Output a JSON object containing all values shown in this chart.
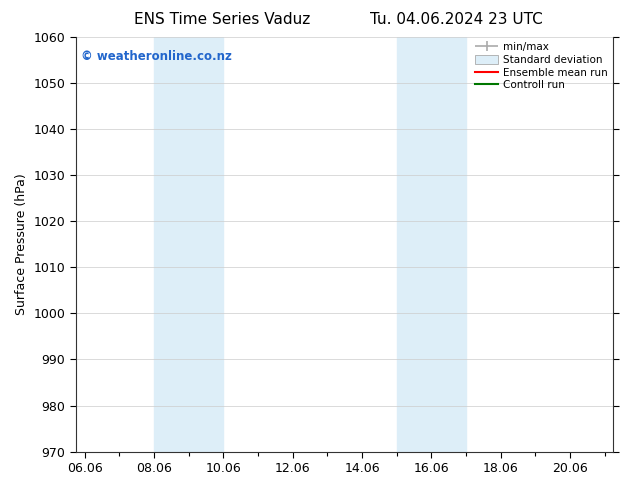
{
  "title_left": "ENS Time Series Vaduz",
  "title_right": "Tu. 04.06.2024 23 UTC",
  "ylabel": "Surface Pressure (hPa)",
  "xlabel": "",
  "ylim": [
    970,
    1060
  ],
  "yticks": [
    970,
    980,
    990,
    1000,
    1010,
    1020,
    1030,
    1040,
    1050,
    1060
  ],
  "xlim_start": 5.75,
  "xlim_end": 21.25,
  "xtick_labels": [
    "06.06",
    "08.06",
    "10.06",
    "12.06",
    "14.06",
    "16.06",
    "18.06",
    "20.06"
  ],
  "xtick_positions": [
    6.0,
    8.0,
    10.0,
    12.0,
    14.0,
    16.0,
    18.0,
    20.0
  ],
  "xminor_positions": [
    7.0,
    9.0,
    11.0,
    13.0,
    15.0,
    17.0,
    19.0,
    21.0
  ],
  "shaded_bands": [
    {
      "x_start": 8.0,
      "x_end": 10.0
    },
    {
      "x_start": 15.0,
      "x_end": 17.0
    }
  ],
  "shaded_color": "#ddeef8",
  "background_color": "#ffffff",
  "watermark_text": "© weatheronline.co.nz",
  "watermark_color": "#2266cc",
  "watermark_fontsize": 8.5,
  "legend_labels": [
    "min/max",
    "Standard deviation",
    "Ensemble mean run",
    "Controll run"
  ],
  "legend_colors": [
    "#aaaaaa",
    "#ddeef8",
    "#ff0000",
    "#007700"
  ],
  "grid_color": "#cccccc",
  "grid_linewidth": 0.5,
  "title_fontsize": 11,
  "axis_fontsize": 9,
  "tick_fontsize": 9,
  "spine_color": "#333333"
}
